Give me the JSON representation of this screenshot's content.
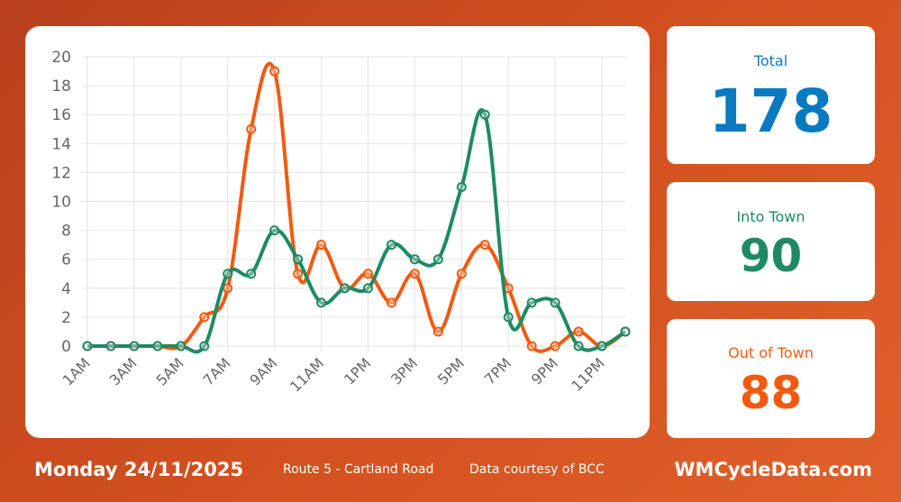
{
  "colors": {
    "into": "#1e8a64",
    "out": "#f25a10",
    "total": "#0a7ac0",
    "grid": "#e2e2e2",
    "tick": "#666666"
  },
  "stats": {
    "total": {
      "label": "Total",
      "value": "178"
    },
    "into": {
      "label": "Into Town",
      "value": "90"
    },
    "out": {
      "label": "Out of Town",
      "value": "88"
    }
  },
  "footer": {
    "date": "Monday 24/11/2025",
    "route": "Route 5 - Cartland Road",
    "credit": "Data courtesy of BCC",
    "site": "WMCycleData.com"
  },
  "chart_data": {
    "type": "line",
    "title": "",
    "xlabel": "",
    "ylabel": "",
    "ylim": [
      0,
      20
    ],
    "yticks": [
      "0",
      "2",
      "4",
      "6",
      "8",
      "10",
      "12",
      "14",
      "16",
      "18",
      "20"
    ],
    "categories": [
      "1AM",
      "2AM",
      "3AM",
      "4AM",
      "5AM",
      "6AM",
      "7AM",
      "8AM",
      "9AM",
      "10AM",
      "11AM",
      "12PM",
      "1PM",
      "2PM",
      "3PM",
      "4PM",
      "5PM",
      "6PM",
      "7PM",
      "8PM",
      "9PM",
      "10PM",
      "11PM",
      "12AM"
    ],
    "tick_labels": [
      "1AM",
      "",
      "3AM",
      "",
      "5AM",
      "",
      "7AM",
      "",
      "9AM",
      "",
      "11AM",
      "",
      "1PM",
      "",
      "3PM",
      "",
      "5PM",
      "",
      "7PM",
      "",
      "9PM",
      "",
      "11PM",
      ""
    ],
    "series": [
      {
        "name": "Out of Town",
        "color": "#f25a10",
        "values": [
          0,
          0,
          0,
          0,
          0,
          2,
          4,
          15,
          19,
          5,
          7,
          4,
          5,
          3,
          5,
          1,
          5,
          7,
          4,
          0,
          0,
          1,
          0,
          1
        ]
      },
      {
        "name": "Into Town",
        "color": "#1e8a64",
        "values": [
          0,
          0,
          0,
          0,
          0,
          0,
          5,
          5,
          8,
          6,
          3,
          4,
          4,
          7,
          6,
          6,
          11,
          16,
          2,
          3,
          3,
          0,
          0,
          1
        ]
      }
    ]
  }
}
